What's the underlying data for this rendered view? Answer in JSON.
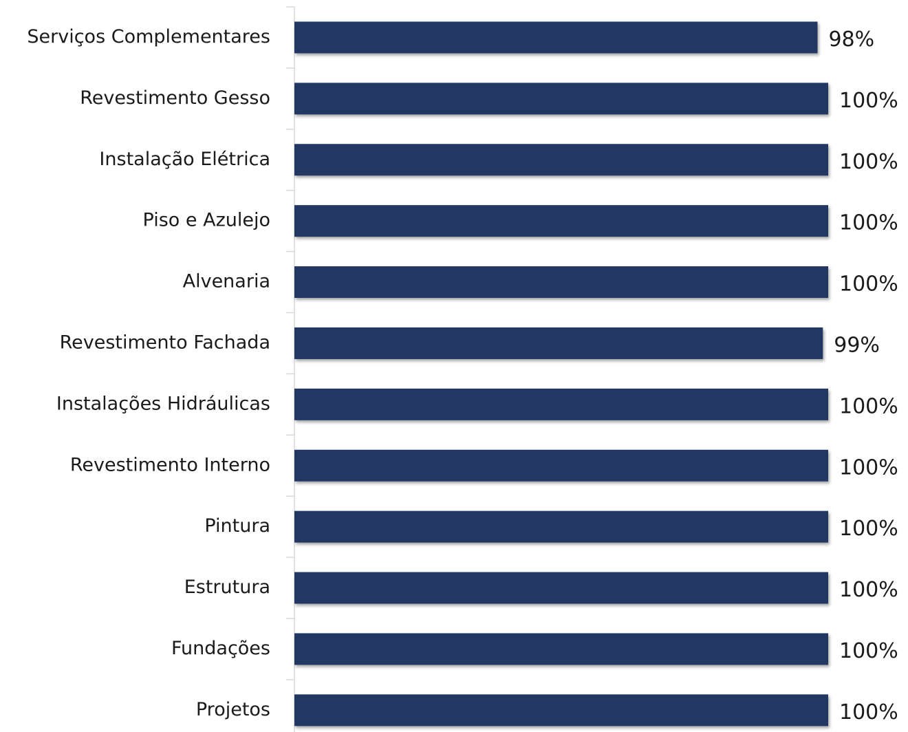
{
  "chart_data": {
    "type": "bar",
    "orientation": "horizontal",
    "categories": [
      "Serviços Complementares",
      "Revestimento Gesso",
      "Instalação Elétrica",
      "Piso e Azulejo",
      "Alvenaria",
      "Revestimento Fachada",
      "Instalações Hidráulicas",
      "Revestimento Interno",
      "Pintura",
      "Estrutura",
      "Fundações",
      "Projetos"
    ],
    "values": [
      98,
      100,
      100,
      100,
      100,
      99,
      100,
      100,
      100,
      100,
      100,
      100
    ],
    "value_labels": [
      "98%",
      "100%",
      "100%",
      "100%",
      "100%",
      "99%",
      "100%",
      "100%",
      "100%",
      "100%",
      "100%",
      "100%"
    ],
    "color": "#203864",
    "xlim": [
      0,
      100
    ]
  }
}
